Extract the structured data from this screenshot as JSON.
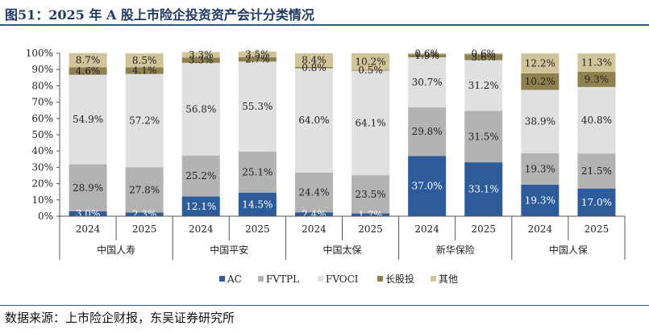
{
  "title": "图51：2025 年 A 股上市险企投资资产会计分类情况",
  "source": "数据来源：上市险企财报，东吴证券研究所",
  "chart_data": {
    "type": "bar",
    "stacked": true,
    "percent": true,
    "ylim": [
      0,
      100
    ],
    "yticks": [
      "0%",
      "10%",
      "20%",
      "30%",
      "40%",
      "50%",
      "60%",
      "70%",
      "80%",
      "90%",
      "100%"
    ],
    "groups": [
      "中国人寿",
      "中国平安",
      "中国太保",
      "新华保险",
      "中国人保"
    ],
    "categories": [
      "2024",
      "2025",
      "2024",
      "2025",
      "2024",
      "2025",
      "2024",
      "2025",
      "2024",
      "2025"
    ],
    "series": [
      {
        "name": "AC",
        "color": "#2e5c9a",
        "values": [
          3.0,
          2.3,
          12.1,
          14.5,
          2.4,
          1.7,
          37.0,
          33.1,
          19.3,
          17.0
        ],
        "labels": [
          "3.0%",
          "2.3%",
          "12.1%",
          "14.5%",
          "2.4%",
          "1.7%",
          "37.0%",
          "33.1%",
          "19.3%",
          "17.0%"
        ]
      },
      {
        "name": "FVTPL",
        "color": "#b3b3b3",
        "values": [
          28.9,
          27.8,
          25.2,
          25.1,
          24.4,
          23.5,
          29.8,
          31.5,
          19.3,
          21.5
        ],
        "labels": [
          "28.9%",
          "27.8%",
          "25.2%",
          "25.1%",
          "24.4%",
          "23.5%",
          "29.8%",
          "31.5%",
          "19.3%",
          "21.5%"
        ]
      },
      {
        "name": "FVOCI",
        "color": "#e0e0e0",
        "values": [
          54.9,
          57.2,
          56.8,
          55.3,
          64.0,
          64.1,
          30.7,
          31.2,
          38.9,
          40.8
        ],
        "labels": [
          "54.9%",
          "57.2%",
          "56.8%",
          "55.3%",
          "64.0%",
          "64.1%",
          "30.7%",
          "31.2%",
          "38.9%",
          "40.8%"
        ]
      },
      {
        "name": "长股投",
        "color": "#8f8050",
        "values": [
          4.6,
          4.1,
          3.3,
          2.7,
          0.8,
          0.5,
          1.9,
          3.6,
          10.2,
          9.3
        ],
        "labels": [
          "4.6%",
          "4.1%",
          "3.3%",
          "2.7%",
          "0.8%",
          "0.5%",
          "1.9%",
          "3.6%",
          "10.2%",
          "9.3%"
        ]
      },
      {
        "name": "其他",
        "color": "#d2c49a",
        "values": [
          8.7,
          8.5,
          3.3,
          3.5,
          8.4,
          10.2,
          0.6,
          0.6,
          12.2,
          11.3
        ],
        "labels": [
          "8.7%",
          "8.5%",
          "3.3%",
          "3.5%",
          "8.4%",
          "10.2%",
          "0.6%",
          "0.6%",
          "12.2%",
          "11.3%"
        ]
      }
    ],
    "legend_position": "bottom",
    "grid": false
  }
}
